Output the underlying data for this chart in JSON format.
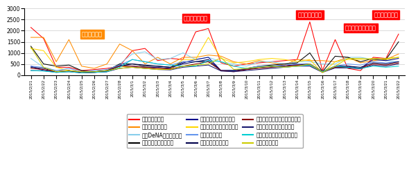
{
  "dates": [
    "2015/2/21",
    "2015/2/22",
    "2015/2/23",
    "2015/2/24",
    "2015/2/25",
    "2015/2/26",
    "2015/2/27",
    "2015/2/28",
    "2015/3/1",
    "2015/3/2",
    "2015/3/3",
    "2015/3/4",
    "2015/3/5",
    "2015/3/6",
    "2015/3/7",
    "2015/3/8",
    "2015/3/9",
    "2015/3/10",
    "2015/3/11",
    "2015/3/12",
    "2015/3/13",
    "2015/3/14",
    "2015/3/15",
    "2015/3/16",
    "2015/3/17",
    "2015/3/18",
    "2015/3/19",
    "2015/3/20",
    "2015/3/21",
    "2015/3/22"
  ],
  "series": [
    {
      "name": "広島東洋カープ",
      "color": "#FF0000",
      "data": [
        2150,
        1650,
        350,
        350,
        200,
        250,
        300,
        400,
        1100,
        1200,
        650,
        750,
        700,
        1950,
        2100,
        550,
        400,
        500,
        550,
        600,
        650,
        700,
        2400,
        200,
        1600,
        300,
        200,
        800,
        750,
        1850
      ]
    },
    {
      "name": "読売ジャイアンツ",
      "color": "#FF8C00",
      "data": [
        1700,
        1700,
        600,
        1600,
        400,
        300,
        500,
        1400,
        1100,
        500,
        800,
        500,
        800,
        800,
        900,
        850,
        600,
        500,
        650,
        550,
        450,
        700,
        650,
        650,
        600,
        800,
        550,
        650,
        700,
        950
      ]
    },
    {
      "name": "横浜DeNAベイスターズ",
      "color": "#87CEEB",
      "data": [
        750,
        350,
        200,
        200,
        150,
        150,
        180,
        500,
        950,
        1050,
        700,
        750,
        1000,
        700,
        800,
        600,
        500,
        400,
        600,
        600,
        500,
        600,
        600,
        500,
        500,
        800,
        800,
        700,
        650,
        600
      ]
    },
    {
      "name": "千葉ロッテマリーンズ",
      "color": "#000000",
      "data": [
        1300,
        500,
        400,
        450,
        200,
        150,
        200,
        500,
        500,
        400,
        400,
        350,
        600,
        600,
        600,
        200,
        200,
        300,
        400,
        450,
        500,
        550,
        1000,
        150,
        850,
        800,
        600,
        750,
        700,
        1500
      ]
    },
    {
      "name": "東京ヤクルトスワローズ",
      "color": "#00008B",
      "data": [
        400,
        200,
        150,
        200,
        100,
        120,
        150,
        450,
        400,
        350,
        350,
        300,
        550,
        700,
        800,
        200,
        200,
        250,
        350,
        400,
        400,
        500,
        500,
        150,
        400,
        400,
        300,
        700,
        650,
        750
      ]
    },
    {
      "name": "福岡ソフトバンクホークス",
      "color": "#FFD700",
      "data": [
        1200,
        1100,
        350,
        200,
        150,
        150,
        200,
        400,
        350,
        300,
        300,
        280,
        700,
        700,
        1700,
        750,
        550,
        600,
        700,
        750,
        700,
        600,
        700,
        100,
        600,
        700,
        700,
        750,
        700,
        800
      ]
    },
    {
      "name": "中日ドラゴンズ",
      "color": "#6495ED",
      "data": [
        400,
        350,
        200,
        300,
        150,
        200,
        250,
        450,
        700,
        600,
        500,
        450,
        600,
        600,
        650,
        200,
        200,
        300,
        400,
        400,
        450,
        500,
        500,
        150,
        400,
        500,
        450,
        600,
        550,
        600
      ]
    },
    {
      "name": "埼玉西武ライオンズ",
      "color": "#00004B",
      "data": [
        350,
        300,
        150,
        200,
        100,
        150,
        200,
        400,
        500,
        450,
        400,
        350,
        500,
        600,
        700,
        200,
        200,
        250,
        350,
        380,
        400,
        450,
        500,
        150,
        400,
        400,
        350,
        550,
        500,
        600
      ]
    },
    {
      "name": "東北楽天ゴールデンイーグルス",
      "color": "#8B0000",
      "data": [
        300,
        250,
        150,
        200,
        100,
        120,
        180,
        400,
        400,
        350,
        300,
        280,
        400,
        500,
        600,
        200,
        150,
        250,
        300,
        350,
        400,
        450,
        450,
        150,
        350,
        350,
        300,
        500,
        450,
        550
      ]
    },
    {
      "name": "オリックス・バファローズ",
      "color": "#191970",
      "data": [
        200,
        200,
        120,
        150,
        100,
        120,
        150,
        300,
        350,
        300,
        250,
        230,
        350,
        400,
        450,
        180,
        150,
        200,
        250,
        300,
        350,
        400,
        400,
        120,
        320,
        320,
        280,
        450,
        400,
        500
      ]
    },
    {
      "name": "北海道日本ハムファイターズ",
      "color": "#00CED1",
      "data": [
        200,
        180,
        120,
        150,
        100,
        120,
        150,
        350,
        700,
        600,
        500,
        450,
        400,
        400,
        650,
        600,
        400,
        300,
        350,
        400,
        350,
        400,
        450,
        150,
        400,
        350,
        300,
        400,
        350,
        400
      ]
    },
    {
      "name": "阪神タイガース",
      "color": "#CCCC00",
      "data": [
        1250,
        350,
        150,
        200,
        150,
        150,
        200,
        300,
        350,
        300,
        250,
        250,
        400,
        450,
        500,
        780,
        250,
        300,
        350,
        400,
        350,
        400,
        500,
        120,
        400,
        750,
        750,
        700,
        750,
        800
      ]
    }
  ],
  "annotations_orange": [
    {
      "x_date": "2015/2/25",
      "y": 1700,
      "text": "堂上選手負傍"
    }
  ],
  "annotations_red": [
    {
      "x_date": "2015/3/6",
      "y": 2420,
      "text": "黒田投手登板日"
    },
    {
      "x_date": "2015/3/15",
      "y": 2580,
      "text": "黒田投手登板日"
    },
    {
      "x_date": "2015/3/19",
      "y": 1980,
      "text": "「アメトーク」放送"
    },
    {
      "x_date": "2015/3/21",
      "y": 2580,
      "text": "黒田投手登板日"
    }
  ],
  "ylim": [
    0,
    3000
  ],
  "yticks": [
    0,
    500,
    1000,
    1500,
    2000,
    2500,
    3000
  ],
  "bg_color": "#FFFFFF",
  "legend_order": [
    "広島東洋カープ",
    "読売ジャイアンツ",
    "横浜DeNAベイスターズ",
    "千葉ロッテマリーンズ",
    "東京ヤクルトスワローズ",
    "福岡ソフトバンクホークス",
    "中日ドラゴンズ",
    "埼玉西武ライオンズ",
    "東北楽天ゴールデンイーグルス",
    "オリックス・バファローズ",
    "北海道日本ハムファイターズ",
    "阪神タイガース"
  ]
}
